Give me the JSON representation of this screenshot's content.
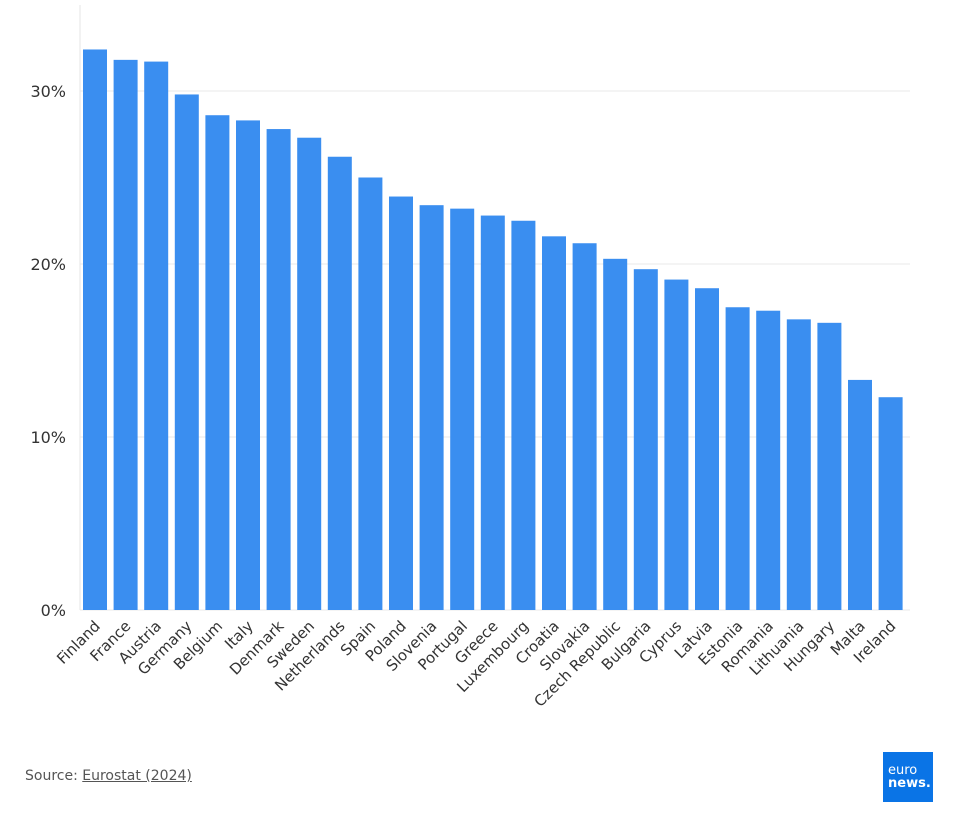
{
  "chart_data": {
    "type": "bar",
    "title": "",
    "xlabel": "",
    "ylabel": "",
    "ylim": [
      0,
      35
    ],
    "yticks": [
      0,
      10,
      20,
      30
    ],
    "ytick_labels": [
      "0%",
      "10%",
      "20%",
      "30%"
    ],
    "grid": true,
    "bar_color": "#3a8ef0",
    "categories": [
      "Finland",
      "France",
      "Austria",
      "Germany",
      "Belgium",
      "Italy",
      "Denmark",
      "Sweden",
      "Netherlands",
      "Spain",
      "Poland",
      "Slovenia",
      "Portugal",
      "Greece",
      "Luxembourg",
      "Croatia",
      "Slovakia",
      "Czech Republic",
      "Bulgaria",
      "Cyprus",
      "Latvia",
      "Estonia",
      "Romania",
      "Lithuania",
      "Hungary",
      "Malta",
      "Ireland"
    ],
    "values": [
      32.4,
      31.8,
      31.7,
      29.8,
      28.6,
      28.3,
      27.8,
      27.3,
      26.2,
      25.0,
      23.9,
      23.4,
      23.2,
      22.8,
      22.5,
      21.6,
      21.2,
      20.3,
      19.7,
      19.1,
      18.6,
      17.5,
      17.3,
      16.8,
      16.6,
      13.3,
      12.3
    ]
  },
  "footer": {
    "source_prefix": "Source: ",
    "source_link": "Eurostat (2024)",
    "logo_text_top": "euro",
    "logo_text_bottom": "news."
  }
}
